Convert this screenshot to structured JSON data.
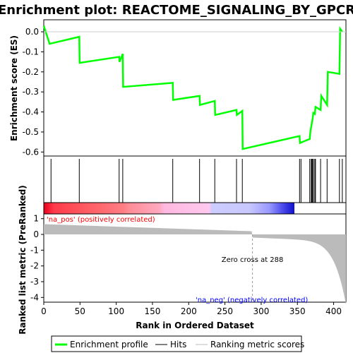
{
  "title": "Enrichment plot: REACTOME_SIGNALING_BY_GPCR",
  "colors": {
    "es_line": "#00ff00",
    "hits": "#000000",
    "metric_fill": "#bbbbbb",
    "pos_label": "#ff0000",
    "neg_label": "#0000ff"
  },
  "chart_data": {
    "type": "line",
    "n_genes": 417,
    "es_panel": {
      "ylabel": "Enrichment score (ES)",
      "ylim": [
        -0.62,
        0.06
      ],
      "yticks": [
        "0.0",
        "-0.1",
        "-0.2",
        "-0.3",
        "-0.4",
        "-0.5",
        "-0.6"
      ],
      "ytick_values": [
        0.0,
        -0.1,
        -0.2,
        -0.3,
        -0.4,
        -0.5,
        -0.6
      ],
      "hits": [
        10,
        49,
        104,
        109,
        178,
        215,
        236,
        266,
        274,
        353,
        355,
        367,
        369,
        370,
        371,
        372,
        374,
        375,
        382,
        391,
        408,
        412
      ],
      "es_values": [
        0.03,
        -0.06,
        -0.025,
        -0.155,
        -0.125,
        -0.15,
        -0.11,
        -0.275,
        -0.255,
        -0.34,
        -0.32,
        -0.365,
        -0.345,
        -0.415,
        -0.39,
        -0.415,
        -0.395,
        -0.585,
        -0.52,
        -0.555,
        -0.535,
        -0.515,
        -0.495,
        -0.475,
        -0.455,
        -0.435,
        -0.405,
        -0.41,
        -0.375,
        -0.39,
        -0.32,
        -0.365,
        -0.2,
        -0.21,
        0.015,
        0.0
      ]
    },
    "metric_panel": {
      "ylabel": "Ranked list metric (PreRanked)",
      "xlabel": "Rank in Ordered Dataset",
      "ylim": [
        -4.3,
        1.3
      ],
      "yticks": [
        "1",
        "0",
        "-1",
        "-2",
        "-3",
        "-4"
      ],
      "ytick_values": [
        1,
        0,
        -1,
        -2,
        -3,
        -4
      ],
      "xticks": [
        "0",
        "50",
        "100",
        "150",
        "200",
        "250",
        "300",
        "350",
        "400"
      ],
      "xtick_values": [
        0,
        50,
        100,
        150,
        200,
        250,
        300,
        350,
        400
      ],
      "zero_cross_label": "Zero cross at 288",
      "zero_cross": 288,
      "pos_label": "'na_pos' (positively correlated)",
      "neg_label": "'na_neg' (negatively correlated)"
    },
    "legend": [
      {
        "label": "Enrichment profile",
        "color": "#00ff00"
      },
      {
        "label": "Hits",
        "color": "#000000"
      },
      {
        "label": "Ranking metric scores",
        "color": "#bbbbbb"
      }
    ]
  }
}
